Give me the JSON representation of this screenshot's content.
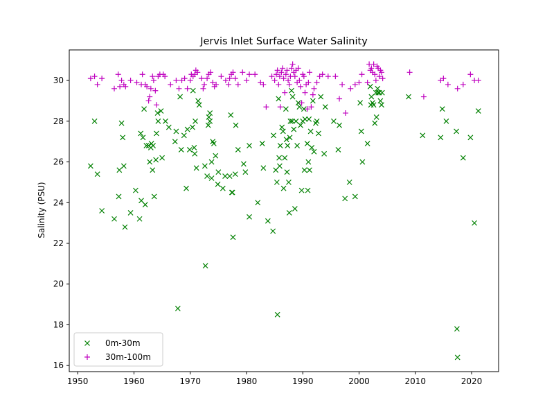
{
  "chart_data": {
    "type": "scatter",
    "title": "Jervis Inlet Surface Water Salinity",
    "xlabel": "",
    "ylabel": "Salinity (PSU)",
    "xlim": [
      1948.5,
      2024.8
    ],
    "ylim": [
      15.7,
      31.5
    ],
    "xticks": [
      1950,
      1960,
      1970,
      1980,
      1990,
      2000,
      2010,
      2020
    ],
    "yticks": [
      16,
      18,
      20,
      22,
      24,
      26,
      28,
      30
    ],
    "grid": false,
    "legend_position": "lower-left",
    "series": [
      {
        "name": "0m-30m",
        "color": "#008000",
        "marker": "x",
        "points": [
          [
            1952.3,
            25.8
          ],
          [
            1953.0,
            28.0
          ],
          [
            1953.5,
            25.4
          ],
          [
            1954.3,
            23.6
          ],
          [
            1956.5,
            23.2
          ],
          [
            1957.3,
            24.3
          ],
          [
            1957.4,
            25.6
          ],
          [
            1957.8,
            27.9
          ],
          [
            1958.0,
            27.2
          ],
          [
            1958.2,
            25.8
          ],
          [
            1958.4,
            22.8
          ],
          [
            1959.4,
            23.5
          ],
          [
            1960.3,
            24.6
          ],
          [
            1961.0,
            23.2
          ],
          [
            1961.2,
            27.4
          ],
          [
            1961.3,
            24.1
          ],
          [
            1961.6,
            27.2
          ],
          [
            1961.8,
            28.6
          ],
          [
            1962.0,
            23.9
          ],
          [
            1962.2,
            26.8
          ],
          [
            1962.6,
            26.8
          ],
          [
            1962.8,
            26.0
          ],
          [
            1963.0,
            26.7
          ],
          [
            1963.1,
            26.9
          ],
          [
            1963.3,
            25.6
          ],
          [
            1963.4,
            26.8
          ],
          [
            1963.6,
            24.3
          ],
          [
            1963.9,
            26.1
          ],
          [
            1964.0,
            27.4
          ],
          [
            1964.2,
            28.4
          ],
          [
            1964.3,
            28.0
          ],
          [
            1964.8,
            28.5
          ],
          [
            1965.0,
            26.2
          ],
          [
            1965.6,
            28.0
          ],
          [
            1966.2,
            27.7
          ],
          [
            1967.3,
            27.0
          ],
          [
            1967.5,
            27.5
          ],
          [
            1967.8,
            18.8
          ],
          [
            1968.2,
            29.2
          ],
          [
            1968.4,
            26.6
          ],
          [
            1968.9,
            27.3
          ],
          [
            1969.3,
            24.7
          ],
          [
            1969.5,
            27.6
          ],
          [
            1969.9,
            26.6
          ],
          [
            1970.4,
            27.7
          ],
          [
            1970.5,
            29.5
          ],
          [
            1970.7,
            26.7
          ],
          [
            1970.8,
            26.4
          ],
          [
            1970.9,
            28.0
          ],
          [
            1971.1,
            25.7
          ],
          [
            1971.4,
            29.0
          ],
          [
            1971.6,
            28.8
          ],
          [
            1972.6,
            25.8
          ],
          [
            1972.7,
            20.9
          ],
          [
            1973.0,
            25.3
          ],
          [
            1973.2,
            27.8
          ],
          [
            1973.3,
            28.2
          ],
          [
            1973.5,
            28.4
          ],
          [
            1973.5,
            28.0
          ],
          [
            1973.8,
            26.0
          ],
          [
            1973.8,
            25.2
          ],
          [
            1974.0,
            27.0
          ],
          [
            1974.2,
            26.9
          ],
          [
            1974.5,
            26.3
          ],
          [
            1974.9,
            24.9
          ],
          [
            1975.0,
            25.5
          ],
          [
            1975.8,
            24.7
          ],
          [
            1976.2,
            25.3
          ],
          [
            1977.0,
            25.3
          ],
          [
            1977.2,
            28.3
          ],
          [
            1977.4,
            24.5
          ],
          [
            1977.5,
            24.5
          ],
          [
            1977.6,
            22.3
          ],
          [
            1978.0,
            25.4
          ],
          [
            1978.1,
            27.8
          ],
          [
            1978.5,
            26.6
          ],
          [
            1979.5,
            25.9
          ],
          [
            1979.8,
            25.5
          ],
          [
            1980.5,
            23.3
          ],
          [
            1980.5,
            26.8
          ],
          [
            1982.0,
            24.0
          ],
          [
            1982.8,
            26.9
          ],
          [
            1983.0,
            25.7
          ],
          [
            1983.8,
            23.1
          ],
          [
            1984.7,
            22.6
          ],
          [
            1984.8,
            27.3
          ],
          [
            1985.2,
            25.6
          ],
          [
            1985.4,
            25.0
          ],
          [
            1985.5,
            18.5
          ],
          [
            1985.7,
            29.1
          ],
          [
            1985.8,
            26.2
          ],
          [
            1985.9,
            25.8
          ],
          [
            1986.0,
            26.8
          ],
          [
            1986.3,
            27.7
          ],
          [
            1986.5,
            27.5
          ],
          [
            1986.6,
            24.7
          ],
          [
            1986.8,
            26.2
          ],
          [
            1987.0,
            28.6
          ],
          [
            1987.1,
            27.1
          ],
          [
            1987.2,
            25.5
          ],
          [
            1987.3,
            26.8
          ],
          [
            1987.5,
            25.0
          ],
          [
            1987.6,
            23.5
          ],
          [
            1987.7,
            27.2
          ],
          [
            1987.8,
            28.0
          ],
          [
            1988.0,
            29.5
          ],
          [
            1988.1,
            28.0
          ],
          [
            1988.2,
            29.2
          ],
          [
            1988.4,
            27.6
          ],
          [
            1988.6,
            23.7
          ],
          [
            1988.8,
            28.0
          ],
          [
            1989.0,
            26.8
          ],
          [
            1989.2,
            28.9
          ],
          [
            1989.4,
            28.7
          ],
          [
            1989.6,
            27.8
          ],
          [
            1989.8,
            24.6
          ],
          [
            1990.0,
            28.0
          ],
          [
            1990.2,
            28.6
          ],
          [
            1990.3,
            25.6
          ],
          [
            1990.4,
            28.1
          ],
          [
            1990.8,
            26.9
          ],
          [
            1990.9,
            24.6
          ],
          [
            1991.0,
            26.0
          ],
          [
            1991.1,
            28.1
          ],
          [
            1991.2,
            25.6
          ],
          [
            1991.4,
            27.5
          ],
          [
            1991.6,
            26.7
          ],
          [
            1991.8,
            29.0
          ],
          [
            1992.0,
            26.5
          ],
          [
            1992.3,
            27.9
          ],
          [
            1992.5,
            28.0
          ],
          [
            1992.8,
            27.4
          ],
          [
            1993.2,
            29.2
          ],
          [
            1993.8,
            26.4
          ],
          [
            1994.0,
            28.7
          ],
          [
            1995.5,
            28.0
          ],
          [
            1996.3,
            26.6
          ],
          [
            1996.5,
            27.8
          ],
          [
            1997.5,
            24.2
          ],
          [
            1998.3,
            25.0
          ],
          [
            1999.3,
            24.3
          ],
          [
            2000.2,
            28.9
          ],
          [
            2000.4,
            27.5
          ],
          [
            2000.6,
            26.0
          ],
          [
            2001.5,
            26.9
          ],
          [
            2002.0,
            29.7
          ],
          [
            2002.1,
            28.8
          ],
          [
            2002.2,
            29.2
          ],
          [
            2002.4,
            28.9
          ],
          [
            2002.6,
            28.8
          ],
          [
            2002.8,
            27.9
          ],
          [
            2003.0,
            29.4
          ],
          [
            2003.1,
            28.2
          ],
          [
            2003.3,
            29.6
          ],
          [
            2003.4,
            29.4
          ],
          [
            2003.6,
            29.4
          ],
          [
            2003.8,
            29.0
          ],
          [
            2004.0,
            28.8
          ],
          [
            2004.1,
            29.4
          ],
          [
            2008.8,
            29.2
          ],
          [
            2011.3,
            27.3
          ],
          [
            2014.5,
            27.2
          ],
          [
            2014.8,
            28.6
          ],
          [
            2015.5,
            28.0
          ],
          [
            2017.3,
            27.5
          ],
          [
            2017.4,
            17.8
          ],
          [
            2017.5,
            16.4
          ],
          [
            2018.5,
            26.2
          ],
          [
            2019.8,
            27.2
          ],
          [
            2020.5,
            23.0
          ],
          [
            2021.2,
            28.5
          ]
        ]
      },
      {
        "name": "30m-100m",
        "color": "#bf00bf",
        "marker": "+",
        "points": [
          [
            1952.3,
            30.1
          ],
          [
            1953.0,
            30.2
          ],
          [
            1953.5,
            29.8
          ],
          [
            1954.3,
            30.1
          ],
          [
            1956.5,
            29.6
          ],
          [
            1957.2,
            30.3
          ],
          [
            1957.5,
            29.7
          ],
          [
            1957.8,
            30.0
          ],
          [
            1958.2,
            29.8
          ],
          [
            1958.5,
            29.7
          ],
          [
            1959.4,
            30.0
          ],
          [
            1960.5,
            29.9
          ],
          [
            1961.3,
            29.8
          ],
          [
            1961.5,
            30.3
          ],
          [
            1962.0,
            29.8
          ],
          [
            1962.3,
            29.7
          ],
          [
            1962.6,
            29.0
          ],
          [
            1962.8,
            29.2
          ],
          [
            1963.0,
            29.6
          ],
          [
            1963.3,
            30.2
          ],
          [
            1963.5,
            30.0
          ],
          [
            1963.8,
            29.5
          ],
          [
            1964.0,
            28.8
          ],
          [
            1964.3,
            30.2
          ],
          [
            1964.6,
            30.3
          ],
          [
            1965.2,
            30.3
          ],
          [
            1965.5,
            30.2
          ],
          [
            1966.5,
            29.8
          ],
          [
            1967.5,
            30.0
          ],
          [
            1968.0,
            29.6
          ],
          [
            1968.5,
            30.0
          ],
          [
            1969.0,
            30.1
          ],
          [
            1969.5,
            29.6
          ],
          [
            1970.0,
            30.0
          ],
          [
            1970.2,
            30.3
          ],
          [
            1970.5,
            30.2
          ],
          [
            1970.8,
            30.3
          ],
          [
            1971.0,
            30.5
          ],
          [
            1971.3,
            30.4
          ],
          [
            1972.0,
            30.1
          ],
          [
            1972.3,
            29.6
          ],
          [
            1972.5,
            29.8
          ],
          [
            1973.0,
            30.1
          ],
          [
            1973.3,
            30.3
          ],
          [
            1973.6,
            30.4
          ],
          [
            1974.0,
            29.9
          ],
          [
            1974.3,
            29.7
          ],
          [
            1974.6,
            29.8
          ],
          [
            1975.5,
            30.2
          ],
          [
            1976.3,
            30.0
          ],
          [
            1976.8,
            29.8
          ],
          [
            1977.0,
            30.1
          ],
          [
            1977.3,
            30.3
          ],
          [
            1977.6,
            30.4
          ],
          [
            1978.0,
            30.1
          ],
          [
            1978.5,
            29.8
          ],
          [
            1979.3,
            30.4
          ],
          [
            1980.0,
            30.0
          ],
          [
            1980.5,
            30.3
          ],
          [
            1981.5,
            30.3
          ],
          [
            1982.5,
            29.9
          ],
          [
            1983.0,
            29.8
          ],
          [
            1983.5,
            28.7
          ],
          [
            1984.5,
            30.2
          ],
          [
            1985.0,
            30.0
          ],
          [
            1985.3,
            30.3
          ],
          [
            1985.5,
            30.5
          ],
          [
            1985.7,
            29.8
          ],
          [
            1985.9,
            30.2
          ],
          [
            1986.0,
            28.7
          ],
          [
            1986.2,
            30.4
          ],
          [
            1986.4,
            30.6
          ],
          [
            1986.6,
            30.1
          ],
          [
            1986.8,
            29.4
          ],
          [
            1987.0,
            30.3
          ],
          [
            1987.2,
            30.5
          ],
          [
            1987.4,
            30.0
          ],
          [
            1987.6,
            29.8
          ],
          [
            1987.8,
            30.2
          ],
          [
            1988.0,
            30.6
          ],
          [
            1988.2,
            30.8
          ],
          [
            1988.4,
            30.4
          ],
          [
            1988.6,
            30.2
          ],
          [
            1988.8,
            30.5
          ],
          [
            1989.0,
            29.9
          ],
          [
            1989.2,
            30.6
          ],
          [
            1989.4,
            30.0
          ],
          [
            1989.6,
            29.7
          ],
          [
            1989.8,
            28.9
          ],
          [
            1990.0,
            30.3
          ],
          [
            1990.2,
            30.2
          ],
          [
            1990.4,
            29.4
          ],
          [
            1990.6,
            29.8
          ],
          [
            1990.8,
            28.6
          ],
          [
            1991.0,
            29.9
          ],
          [
            1991.2,
            30.4
          ],
          [
            1991.5,
            28.7
          ],
          [
            1991.8,
            29.3
          ],
          [
            1992.0,
            29.6
          ],
          [
            1992.5,
            29.9
          ],
          [
            1993.0,
            30.2
          ],
          [
            1993.5,
            30.3
          ],
          [
            1994.5,
            30.2
          ],
          [
            1995.8,
            30.2
          ],
          [
            1996.5,
            29.1
          ],
          [
            1997.0,
            29.8
          ],
          [
            1997.6,
            28.4
          ],
          [
            1998.5,
            29.6
          ],
          [
            1999.3,
            29.8
          ],
          [
            2000.0,
            29.9
          ],
          [
            2000.5,
            30.3
          ],
          [
            2001.5,
            29.9
          ],
          [
            2001.8,
            30.8
          ],
          [
            2002.0,
            30.5
          ],
          [
            2002.2,
            30.6
          ],
          [
            2002.4,
            30.4
          ],
          [
            2002.6,
            30.8
          ],
          [
            2002.8,
            30.3
          ],
          [
            2003.0,
            30.0
          ],
          [
            2003.2,
            30.7
          ],
          [
            2003.4,
            30.6
          ],
          [
            2003.6,
            30.2
          ],
          [
            2003.8,
            30.5
          ],
          [
            2004.0,
            30.4
          ],
          [
            2004.2,
            30.1
          ],
          [
            2009.0,
            30.4
          ],
          [
            2011.5,
            29.2
          ],
          [
            2014.5,
            30.0
          ],
          [
            2015.0,
            30.1
          ],
          [
            2015.8,
            29.8
          ],
          [
            2017.5,
            29.6
          ],
          [
            2018.5,
            29.8
          ],
          [
            2019.8,
            30.3
          ],
          [
            2020.5,
            30.0
          ],
          [
            2021.2,
            30.0
          ]
        ]
      }
    ]
  }
}
